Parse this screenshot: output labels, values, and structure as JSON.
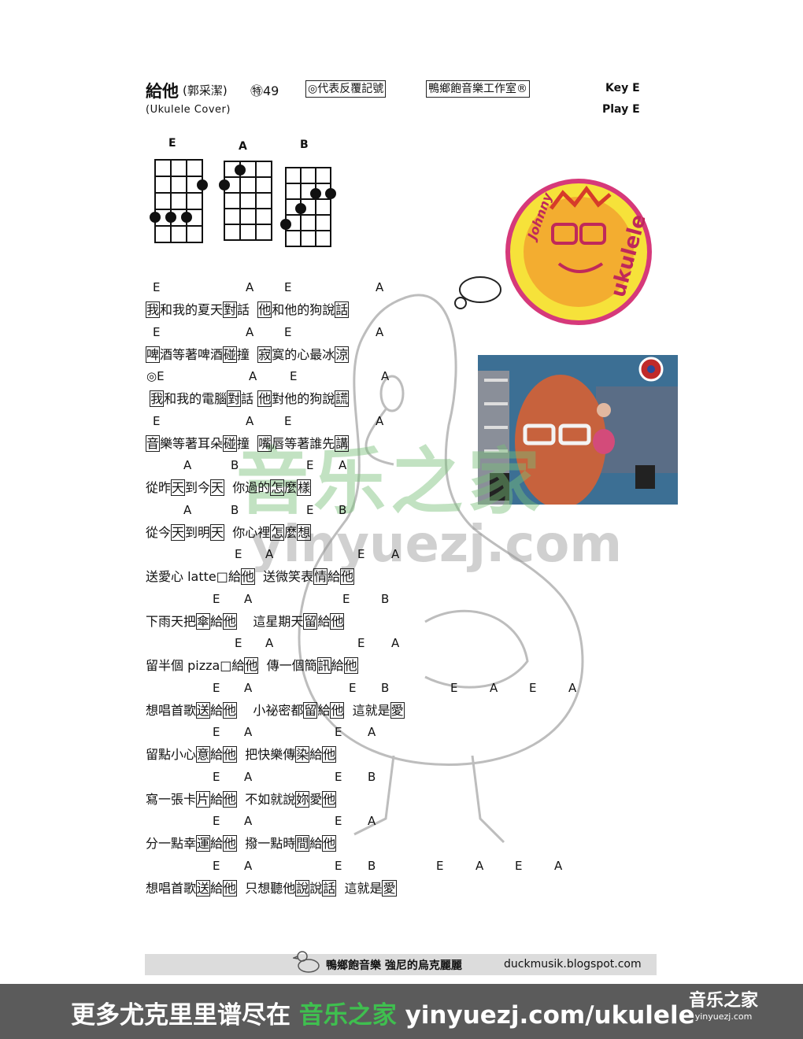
{
  "header": {
    "title": "給他",
    "artist": "(郭采潔)",
    "number": "㊕49",
    "repeat_note": "◎代表反覆記號",
    "studio": "鴨鄉飽音樂工作室®",
    "key": "Key E",
    "play": "Play E",
    "subtitle": "(Ukulele Cover)"
  },
  "chord_diagrams": [
    "E",
    "A",
    "B"
  ],
  "logo": {
    "brand_top": "Johnny",
    "brand_bottom": "ukulele"
  },
  "watermark": {
    "cn": "音乐之家",
    "url": "yinyuezj.com"
  },
  "song": [
    {
      "chords": [
        "E",
        "A",
        "E",
        "A"
      ],
      "segments": [
        {
          "t": "我",
          "b": true
        },
        {
          "t": "和我的夏天"
        },
        {
          "t": "對",
          "b": true
        },
        {
          "t": "話  "
        },
        {
          "t": "他",
          "b": true
        },
        {
          "t": "和他的狗說"
        },
        {
          "t": "話",
          "b": true
        }
      ]
    },
    {
      "chords": [
        "E",
        "A",
        "E",
        "A"
      ],
      "segments": [
        {
          "t": "啤",
          "b": true
        },
        {
          "t": "酒等著啤酒"
        },
        {
          "t": "碰",
          "b": true
        },
        {
          "t": "撞  "
        },
        {
          "t": "寂",
          "b": true
        },
        {
          "t": "寞的心最冰"
        },
        {
          "t": "涼",
          "b": true
        }
      ]
    },
    {
      "chords": [
        "◎E",
        "A",
        "E",
        "A"
      ],
      "segments": [
        {
          "t": " "
        },
        {
          "t": "我",
          "b": true
        },
        {
          "t": "和我的電腦"
        },
        {
          "t": "對",
          "b": true
        },
        {
          "t": "話 "
        },
        {
          "t": "他",
          "b": true
        },
        {
          "t": "對他的狗說"
        },
        {
          "t": "謊",
          "b": true
        }
      ]
    },
    {
      "chords": [
        "E",
        "A",
        "E",
        "A"
      ],
      "segments": [
        {
          "t": "音",
          "b": true
        },
        {
          "t": "樂等著耳朵"
        },
        {
          "t": "碰",
          "b": true
        },
        {
          "t": "撞  "
        },
        {
          "t": "嘴",
          "b": true
        },
        {
          "t": "唇等著誰先"
        },
        {
          "t": "講",
          "b": true
        }
      ]
    },
    {
      "chords": [
        "A",
        "B",
        "E",
        "A"
      ],
      "segments": [
        {
          "t": "從昨"
        },
        {
          "t": "天",
          "b": true
        },
        {
          "t": "到今"
        },
        {
          "t": "天",
          "b": true
        },
        {
          "t": "  你過的"
        },
        {
          "t": "怎",
          "b": true
        },
        {
          "t": "麼"
        },
        {
          "t": "樣",
          "b": true
        }
      ]
    },
    {
      "chords": [
        "A",
        "B",
        "E",
        "B"
      ],
      "segments": [
        {
          "t": "從今"
        },
        {
          "t": "天",
          "b": true
        },
        {
          "t": "到明"
        },
        {
          "t": "天",
          "b": true
        },
        {
          "t": "  你心裡"
        },
        {
          "t": "怎",
          "b": true
        },
        {
          "t": "麼"
        },
        {
          "t": "想",
          "b": true
        }
      ]
    },
    {
      "chords": [
        "E",
        "A",
        "E",
        "A"
      ],
      "segments": [
        {
          "t": "送愛心 latte□給"
        },
        {
          "t": "他",
          "b": true
        },
        {
          "t": "  送微笑表"
        },
        {
          "t": "情",
          "b": true
        },
        {
          "t": "給"
        },
        {
          "t": "他",
          "b": true
        }
      ]
    },
    {
      "chords": [
        "E",
        "A",
        "E",
        "B"
      ],
      "segments": [
        {
          "t": "下雨天把"
        },
        {
          "t": "傘",
          "b": true
        },
        {
          "t": "給"
        },
        {
          "t": "他",
          "b": true
        },
        {
          "t": "    這星期天"
        },
        {
          "t": "留",
          "b": true
        },
        {
          "t": "給"
        },
        {
          "t": "他",
          "b": true
        }
      ]
    },
    {
      "chords": [
        "E",
        "A",
        "E",
        "A"
      ],
      "segments": [
        {
          "t": "留半個 pizza□給"
        },
        {
          "t": "他",
          "b": true
        },
        {
          "t": "  傳一個簡"
        },
        {
          "t": "訊",
          "b": true
        },
        {
          "t": "給"
        },
        {
          "t": "他",
          "b": true
        }
      ]
    },
    {
      "chords": [
        "E",
        "A",
        "E",
        "B",
        "E",
        "A",
        "E",
        "A"
      ],
      "segments": [
        {
          "t": "想唱首歌"
        },
        {
          "t": "送",
          "b": true
        },
        {
          "t": "給"
        },
        {
          "t": "他",
          "b": true
        },
        {
          "t": "    小祕密都"
        },
        {
          "t": "留",
          "b": true
        },
        {
          "t": "給"
        },
        {
          "t": "他",
          "b": true
        },
        {
          "t": "  這就是"
        },
        {
          "t": "愛",
          "b": true
        }
      ]
    },
    {
      "chords": [
        "E",
        "A",
        "E",
        "A"
      ],
      "segments": [
        {
          "t": "留點小心"
        },
        {
          "t": "意",
          "b": true
        },
        {
          "t": "給"
        },
        {
          "t": "他",
          "b": true
        },
        {
          "t": "  把快樂傳"
        },
        {
          "t": "染",
          "b": true
        },
        {
          "t": "給"
        },
        {
          "t": "他",
          "b": true
        }
      ]
    },
    {
      "chords": [
        "E",
        "A",
        "E",
        "B"
      ],
      "segments": [
        {
          "t": "寫一張卡"
        },
        {
          "t": "片",
          "b": true
        },
        {
          "t": "給"
        },
        {
          "t": "他",
          "b": true
        },
        {
          "t": "  不如就說"
        },
        {
          "t": "妳",
          "b": true
        },
        {
          "t": "愛"
        },
        {
          "t": "他",
          "b": true
        }
      ]
    },
    {
      "chords": [
        "E",
        "A",
        "E",
        "A"
      ],
      "segments": [
        {
          "t": "分一點幸"
        },
        {
          "t": "運",
          "b": true
        },
        {
          "t": "給"
        },
        {
          "t": "他",
          "b": true
        },
        {
          "t": "  撥一點時"
        },
        {
          "t": "間",
          "b": true
        },
        {
          "t": "給"
        },
        {
          "t": "他",
          "b": true
        }
      ]
    },
    {
      "chords": [
        "E",
        "A",
        "E",
        "B",
        "E",
        "A",
        "E",
        "A"
      ],
      "segments": [
        {
          "t": "想唱首歌"
        },
        {
          "t": "送",
          "b": true
        },
        {
          "t": "給"
        },
        {
          "t": "他",
          "b": true
        },
        {
          "t": "  只想聽他"
        },
        {
          "t": "說",
          "b": true
        },
        {
          "t": "說"
        },
        {
          "t": "話",
          "b": true
        },
        {
          "t": "  這就是"
        },
        {
          "t": "愛",
          "b": true
        }
      ]
    }
  ],
  "footer": {
    "label": "鴨鄉飽音樂  強尼的烏克麗麗",
    "url": "duckmusik.blogspot.com"
  },
  "banner": {
    "prefix": "更多尤克里里谱尽在",
    "site_name": "音乐之家",
    "url": "yinyuezj.com/ukulele",
    "logo_cn": "音乐之家",
    "logo_url": "yinyuezj.com"
  }
}
